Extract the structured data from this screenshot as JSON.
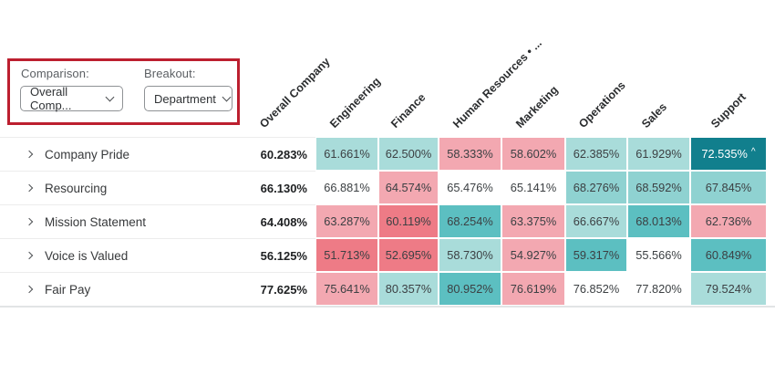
{
  "filters": {
    "comparison_label": "Comparison:",
    "comparison_value": "Overall Comp...",
    "breakout_label": "Breakout:",
    "breakout_value": "Department"
  },
  "annotation": {
    "highlight_color": "#bc1f2f"
  },
  "chart_data": {
    "type": "heatmap",
    "columns": [
      "Overall Company",
      "Engineering",
      "Finance",
      "Human Resources • ...",
      "Marketing",
      "Operations",
      "Sales",
      "Support"
    ],
    "palette": {
      "white": "#ffffff",
      "tealL": "#a9dcda",
      "tealL2": "#8fd2d1",
      "tealM": "#5cbfc1",
      "tealD": "#117f8d",
      "pinkL": "#f3a8b1",
      "pinkD": "#ee7b86"
    },
    "text_colors": {
      "default": "#3c4043",
      "tealD": "#ffffff"
    },
    "rows": [
      {
        "label": "Company Pride",
        "overall": "60.283%",
        "cells": [
          {
            "v": "61.661%",
            "c": "tealL"
          },
          {
            "v": "62.500%",
            "c": "tealL"
          },
          {
            "v": "58.333%",
            "c": "pinkL"
          },
          {
            "v": "58.602%",
            "c": "pinkL"
          },
          {
            "v": "62.385%",
            "c": "tealL"
          },
          {
            "v": "61.929%",
            "c": "tealL"
          },
          {
            "v": "72.535%",
            "c": "tealD",
            "m": "^"
          }
        ]
      },
      {
        "label": "Resourcing",
        "overall": "66.130%",
        "cells": [
          {
            "v": "66.881%",
            "c": "white"
          },
          {
            "v": "64.574%",
            "c": "pinkL"
          },
          {
            "v": "65.476%",
            "c": "white"
          },
          {
            "v": "65.141%",
            "c": "white"
          },
          {
            "v": "68.276%",
            "c": "tealL2"
          },
          {
            "v": "68.592%",
            "c": "tealL2"
          },
          {
            "v": "67.845%",
            "c": "tealL2"
          }
        ]
      },
      {
        "label": "Mission Statement",
        "overall": "64.408%",
        "cells": [
          {
            "v": "63.287%",
            "c": "pinkL"
          },
          {
            "v": "60.119%",
            "c": "pinkD"
          },
          {
            "v": "68.254%",
            "c": "tealM"
          },
          {
            "v": "63.375%",
            "c": "pinkL"
          },
          {
            "v": "66.667%",
            "c": "tealL"
          },
          {
            "v": "68.013%",
            "c": "tealM"
          },
          {
            "v": "62.736%",
            "c": "pinkL"
          }
        ]
      },
      {
        "label": "Voice is Valued",
        "overall": "56.125%",
        "cells": [
          {
            "v": "51.713%",
            "c": "pinkD"
          },
          {
            "v": "52.695%",
            "c": "pinkD"
          },
          {
            "v": "58.730%",
            "c": "tealL"
          },
          {
            "v": "54.927%",
            "c": "pinkL"
          },
          {
            "v": "59.317%",
            "c": "tealM"
          },
          {
            "v": "55.566%",
            "c": "white"
          },
          {
            "v": "60.849%",
            "c": "tealM"
          }
        ]
      },
      {
        "label": "Fair Pay",
        "overall": "77.625%",
        "cells": [
          {
            "v": "75.641%",
            "c": "pinkL"
          },
          {
            "v": "80.357%",
            "c": "tealL"
          },
          {
            "v": "80.952%",
            "c": "tealM"
          },
          {
            "v": "76.619%",
            "c": "pinkL"
          },
          {
            "v": "76.852%",
            "c": "white"
          },
          {
            "v": "77.820%",
            "c": "white"
          },
          {
            "v": "79.524%",
            "c": "tealL"
          }
        ]
      }
    ]
  }
}
